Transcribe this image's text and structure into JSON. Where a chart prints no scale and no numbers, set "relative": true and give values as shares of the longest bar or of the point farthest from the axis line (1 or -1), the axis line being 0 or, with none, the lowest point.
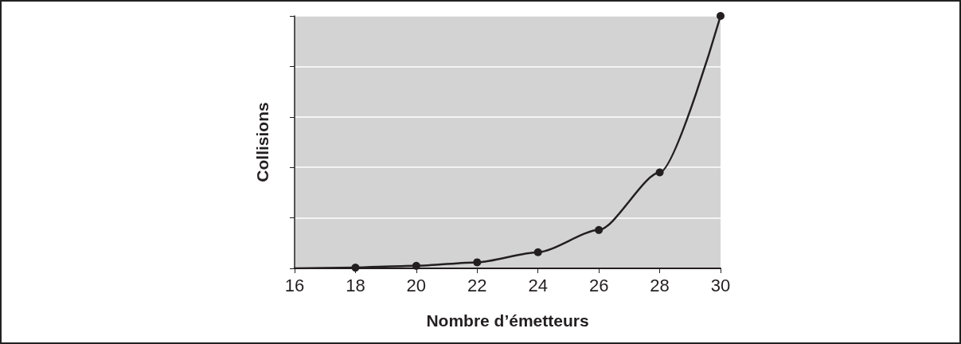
{
  "chart_data": {
    "type": "line",
    "relative": true,
    "xlabel": "Nombre d’émetteurs",
    "ylabel": "Collisions",
    "xlim": [
      16,
      30
    ],
    "xticks": [
      16,
      18,
      20,
      22,
      24,
      26,
      28,
      30
    ],
    "grid": "y",
    "marker": "circle",
    "line_style": "solid",
    "series": [
      {
        "color": "#231f20",
        "x": [
          18,
          20,
          22,
          24,
          26,
          28,
          30
        ],
        "values": [
          0.003,
          0.01,
          0.024,
          0.064,
          0.152,
          0.38,
          1
        ]
      },
      {
        "color": "#231f20",
        "x": [
          16,
          18
        ],
        "values": [
          0,
          0.003
        ],
        "marker": "none"
      }
    ]
  }
}
